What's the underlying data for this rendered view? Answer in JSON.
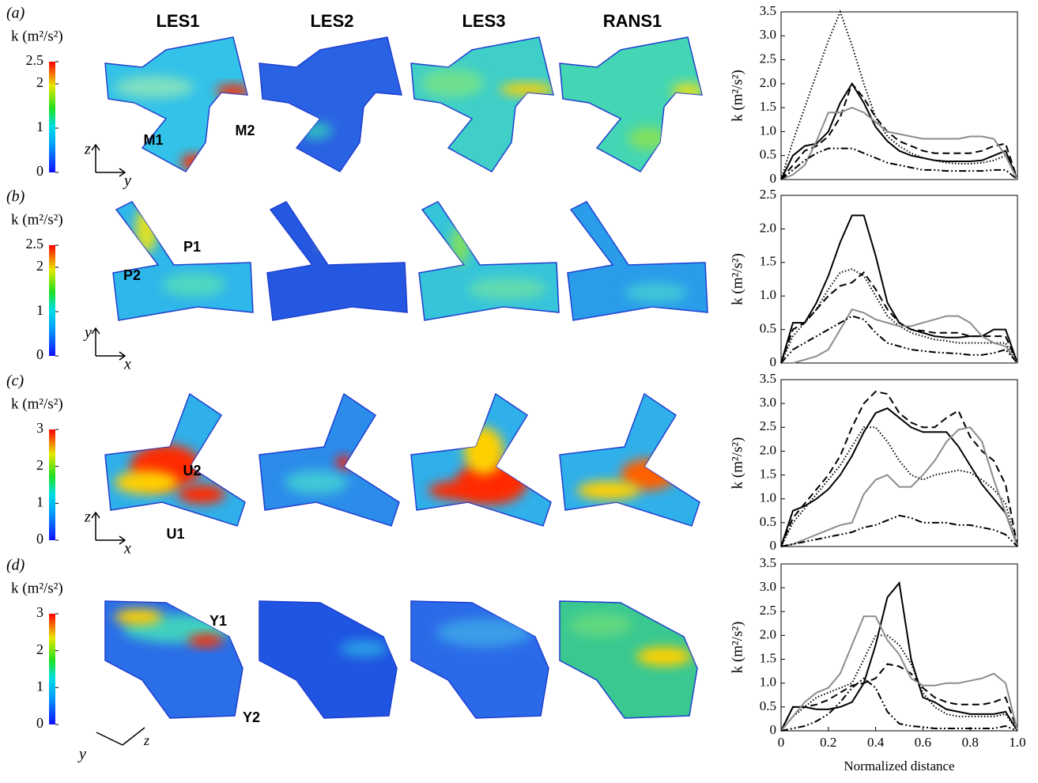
{
  "columns": [
    "LES1",
    "LES2",
    "LES3",
    "RANS1"
  ],
  "panels": [
    {
      "label": "(a)",
      "colorbar_label": "k (m²/s²)",
      "colorbar_lim": [
        0,
        2.5
      ],
      "colorbar_ticks": [
        0,
        1,
        2,
        2.5
      ],
      "annotations": [
        "M1",
        "M2"
      ],
      "axes": [
        "z",
        "y"
      ]
    },
    {
      "label": "(b)",
      "colorbar_label": "k (m²/s²)",
      "colorbar_lim": [
        0,
        2.5
      ],
      "colorbar_ticks": [
        0,
        1,
        2,
        2.5
      ],
      "annotations": [
        "P1",
        "P2"
      ],
      "axes": [
        "y",
        "x"
      ]
    },
    {
      "label": "(c)",
      "colorbar_label": "k (m²/s²)",
      "colorbar_lim": [
        0,
        3
      ],
      "colorbar_ticks": [
        0,
        1,
        2,
        3
      ],
      "annotations": [
        "U2",
        "U1"
      ],
      "axes": [
        "z",
        "x"
      ]
    },
    {
      "label": "(d)",
      "colorbar_label": "k (m²/s²)",
      "colorbar_lim": [
        0,
        3
      ],
      "colorbar_ticks": [
        0,
        1,
        2,
        3
      ],
      "annotations": [
        "Y1",
        "Y2"
      ],
      "axes": [
        "y",
        "z"
      ]
    }
  ],
  "chart_data": [
    {
      "type": "line",
      "ylabel": "k (m²/s²)",
      "x": [
        0,
        0.05,
        0.1,
        0.15,
        0.2,
        0.25,
        0.3,
        0.35,
        0.4,
        0.45,
        0.5,
        0.55,
        0.6,
        0.65,
        0.7,
        0.75,
        0.8,
        0.85,
        0.9,
        0.95,
        1
      ],
      "xlim": [
        0,
        1
      ],
      "ylim": [
        0,
        3.5
      ],
      "yticks": [
        0,
        0.5,
        {
          "value": 1,
          "label": "1.0"
        },
        1.5,
        {
          "value": 2,
          "label": "2.0"
        },
        2.5,
        {
          "value": 3,
          "label": "3.0"
        },
        3.5
      ],
      "series": [
        {
          "color": "#000000",
          "style": "solid",
          "values": [
            0,
            0.5,
            0.7,
            0.75,
            1.0,
            1.6,
            2.0,
            1.6,
            1.1,
            0.8,
            0.6,
            0.5,
            0.45,
            0.4,
            0.38,
            0.38,
            0.38,
            0.4,
            0.5,
            0.6,
            0
          ]
        },
        {
          "color": "#000000",
          "style": "dashed",
          "values": [
            0,
            0.3,
            0.6,
            0.7,
            0.9,
            1.3,
            2.0,
            1.7,
            1.3,
            1.0,
            0.8,
            0.7,
            0.6,
            0.55,
            0.55,
            0.55,
            0.55,
            0.6,
            0.7,
            0.75,
            0
          ]
        },
        {
          "color": "#000000",
          "style": "dotted",
          "values": [
            0,
            0.8,
            1.5,
            2.2,
            2.9,
            3.5,
            2.8,
            2.0,
            1.3,
            0.9,
            0.7,
            0.55,
            0.45,
            0.4,
            0.35,
            0.33,
            0.33,
            0.35,
            0.4,
            0.5,
            0
          ]
        },
        {
          "color": "#8c8c8c",
          "style": "solid",
          "values": [
            0,
            0.1,
            0.3,
            0.8,
            1.4,
            1.4,
            1.5,
            1.4,
            1.2,
            1.0,
            0.95,
            0.9,
            0.85,
            0.85,
            0.85,
            0.85,
            0.9,
            0.9,
            0.85,
            0.5,
            0
          ]
        },
        {
          "color": "#000000",
          "style": "dash-dot-dot",
          "values": [
            0,
            0.2,
            0.4,
            0.55,
            0.65,
            0.65,
            0.65,
            0.55,
            0.45,
            0.35,
            0.3,
            0.25,
            0.2,
            0.2,
            0.18,
            0.18,
            0.18,
            0.18,
            0.2,
            0.2,
            0
          ]
        }
      ]
    },
    {
      "type": "line",
      "ylabel": "k (m²/s²)",
      "x": [
        0,
        0.05,
        0.1,
        0.15,
        0.2,
        0.25,
        0.3,
        0.35,
        0.4,
        0.45,
        0.5,
        0.55,
        0.6,
        0.65,
        0.7,
        0.75,
        0.8,
        0.85,
        0.9,
        0.95,
        1
      ],
      "xlim": [
        0,
        1
      ],
      "ylim": [
        0,
        2.5
      ],
      "yticks": [
        0,
        0.5,
        {
          "value": 1,
          "label": "1.0"
        },
        1.5,
        {
          "value": 2,
          "label": "2.0"
        },
        2.5
      ],
      "series": [
        {
          "color": "#000000",
          "style": "solid",
          "values": [
            0,
            0.6,
            0.6,
            0.9,
            1.3,
            1.8,
            2.2,
            2.2,
            1.6,
            0.9,
            0.6,
            0.5,
            0.45,
            0.4,
            0.38,
            0.38,
            0.4,
            0.4,
            0.5,
            0.5,
            0
          ]
        },
        {
          "color": "#000000",
          "style": "dashed",
          "values": [
            0,
            0.5,
            0.6,
            0.8,
            1.0,
            1.15,
            1.2,
            1.35,
            1.1,
            0.8,
            0.6,
            0.5,
            0.48,
            0.45,
            0.45,
            0.45,
            0.4,
            0.4,
            0.4,
            0.4,
            0
          ]
        },
        {
          "color": "#000000",
          "style": "dotted",
          "values": [
            0,
            0.4,
            0.6,
            0.8,
            1.1,
            1.35,
            1.4,
            1.3,
            1.0,
            0.7,
            0.55,
            0.45,
            0.4,
            0.35,
            0.33,
            0.3,
            0.3,
            0.3,
            0.3,
            0.3,
            0
          ]
        },
        {
          "color": "#8c8c8c",
          "style": "solid",
          "values": [
            0,
            0,
            0.05,
            0.1,
            0.2,
            0.5,
            0.8,
            0.75,
            0.65,
            0.6,
            0.55,
            0.55,
            0.6,
            0.65,
            0.7,
            0.7,
            0.6,
            0.4,
            0.3,
            0.25,
            0
          ]
        },
        {
          "color": "#000000",
          "style": "dash-dot-dot",
          "values": [
            0,
            0.2,
            0.3,
            0.4,
            0.5,
            0.6,
            0.7,
            0.65,
            0.45,
            0.3,
            0.25,
            0.2,
            0.18,
            0.16,
            0.15,
            0.14,
            0.12,
            0.12,
            0.15,
            0.2,
            0
          ]
        }
      ]
    },
    {
      "type": "line",
      "ylabel": "k (m²/s²)",
      "x": [
        0,
        0.05,
        0.1,
        0.15,
        0.2,
        0.25,
        0.3,
        0.35,
        0.4,
        0.45,
        0.5,
        0.55,
        0.6,
        0.65,
        0.7,
        0.75,
        0.8,
        0.85,
        0.9,
        0.95,
        1
      ],
      "xlim": [
        0,
        1
      ],
      "ylim": [
        0,
        3.5
      ],
      "yticks": [
        0,
        0.5,
        {
          "value": 1,
          "label": "1.0"
        },
        1.5,
        {
          "value": 2,
          "label": "2.0"
        },
        2.5,
        {
          "value": 3,
          "label": "3.0"
        },
        3.5
      ],
      "series": [
        {
          "color": "#000000",
          "style": "solid",
          "values": [
            0,
            0.75,
            0.85,
            1.0,
            1.2,
            1.5,
            1.9,
            2.4,
            2.8,
            2.9,
            2.7,
            2.5,
            2.4,
            2.4,
            2.4,
            2.1,
            1.7,
            1.3,
            1.0,
            0.7,
            0
          ]
        },
        {
          "color": "#000000",
          "style": "dashed",
          "values": [
            0,
            0.6,
            0.9,
            1.2,
            1.5,
            1.9,
            2.5,
            3.0,
            3.25,
            3.2,
            2.8,
            2.6,
            2.5,
            2.5,
            2.7,
            2.85,
            2.3,
            2.0,
            1.8,
            1.3,
            0
          ]
        },
        {
          "color": "#000000",
          "style": "dotted",
          "values": [
            0,
            0.5,
            0.8,
            1.1,
            1.4,
            1.7,
            2.1,
            2.5,
            2.5,
            2.2,
            1.8,
            1.5,
            1.4,
            1.5,
            1.55,
            1.6,
            1.55,
            1.4,
            1.2,
            0.9,
            0
          ]
        },
        {
          "color": "#8c8c8c",
          "style": "solid",
          "values": [
            0,
            0.05,
            0.15,
            0.25,
            0.35,
            0.45,
            0.5,
            1.1,
            1.4,
            1.5,
            1.25,
            1.25,
            1.5,
            1.8,
            2.2,
            2.45,
            2.5,
            2.2,
            1.4,
            0.7,
            0
          ]
        },
        {
          "color": "#000000",
          "style": "dash-dot-dot",
          "values": [
            0,
            0.05,
            0.1,
            0.15,
            0.2,
            0.25,
            0.3,
            0.4,
            0.45,
            0.55,
            0.65,
            0.6,
            0.5,
            0.5,
            0.5,
            0.45,
            0.45,
            0.4,
            0.35,
            0.25,
            0
          ]
        }
      ]
    },
    {
      "type": "line",
      "ylabel": "k (m²/s²)",
      "xlabel": "Normalized distance",
      "x": [
        0,
        0.05,
        0.1,
        0.15,
        0.2,
        0.25,
        0.3,
        0.35,
        0.4,
        0.45,
        0.5,
        0.55,
        0.6,
        0.65,
        0.7,
        0.75,
        0.8,
        0.85,
        0.9,
        0.95,
        1
      ],
      "xlim": [
        0,
        1
      ],
      "ylim": [
        0,
        3.5
      ],
      "xticks": [
        0,
        0.2,
        0.4,
        0.6,
        0.8,
        {
          "value": 1,
          "label": "1.0"
        }
      ],
      "yticks": [
        0,
        0.5,
        {
          "value": 1,
          "label": "1.0"
        },
        1.5,
        {
          "value": 2,
          "label": "2.0"
        },
        2.5,
        {
          "value": 3,
          "label": "3.0"
        },
        3.5
      ],
      "series": [
        {
          "color": "#000000",
          "style": "solid",
          "values": [
            0,
            0.5,
            0.5,
            0.45,
            0.45,
            0.5,
            0.6,
            1.0,
            1.8,
            2.8,
            3.1,
            1.5,
            0.7,
            0.6,
            0.45,
            0.4,
            0.35,
            0.35,
            0.35,
            0.4,
            0
          ]
        },
        {
          "color": "#000000",
          "style": "dashed",
          "values": [
            0,
            0.5,
            0.5,
            0.55,
            0.65,
            0.8,
            0.95,
            1.0,
            1.1,
            1.4,
            1.35,
            1.2,
            0.9,
            0.7,
            0.6,
            0.55,
            0.55,
            0.55,
            0.6,
            0.7,
            0
          ]
        },
        {
          "color": "#000000",
          "style": "dotted",
          "values": [
            0,
            0.3,
            0.5,
            0.7,
            0.8,
            0.9,
            1.0,
            1.5,
            2.0,
            2.0,
            1.8,
            1.4,
            0.8,
            0.5,
            0.35,
            0.3,
            0.3,
            0.3,
            0.3,
            0.35,
            0
          ]
        },
        {
          "color": "#8c8c8c",
          "style": "solid",
          "values": [
            0,
            0.3,
            0.6,
            0.8,
            0.9,
            1.2,
            1.8,
            2.4,
            2.4,
            1.9,
            1.6,
            1.1,
            0.95,
            0.95,
            1.0,
            1.0,
            1.05,
            1.1,
            1.2,
            1.0,
            0
          ]
        },
        {
          "color": "#000000",
          "style": "dash-dot-dot",
          "values": [
            0,
            0.05,
            0.1,
            0.2,
            0.35,
            0.6,
            0.9,
            1.1,
            0.9,
            0.4,
            0.15,
            0.1,
            0.08,
            0.05,
            0.05,
            0.05,
            0.05,
            0.05,
            0.05,
            0.1,
            0
          ]
        }
      ]
    }
  ]
}
